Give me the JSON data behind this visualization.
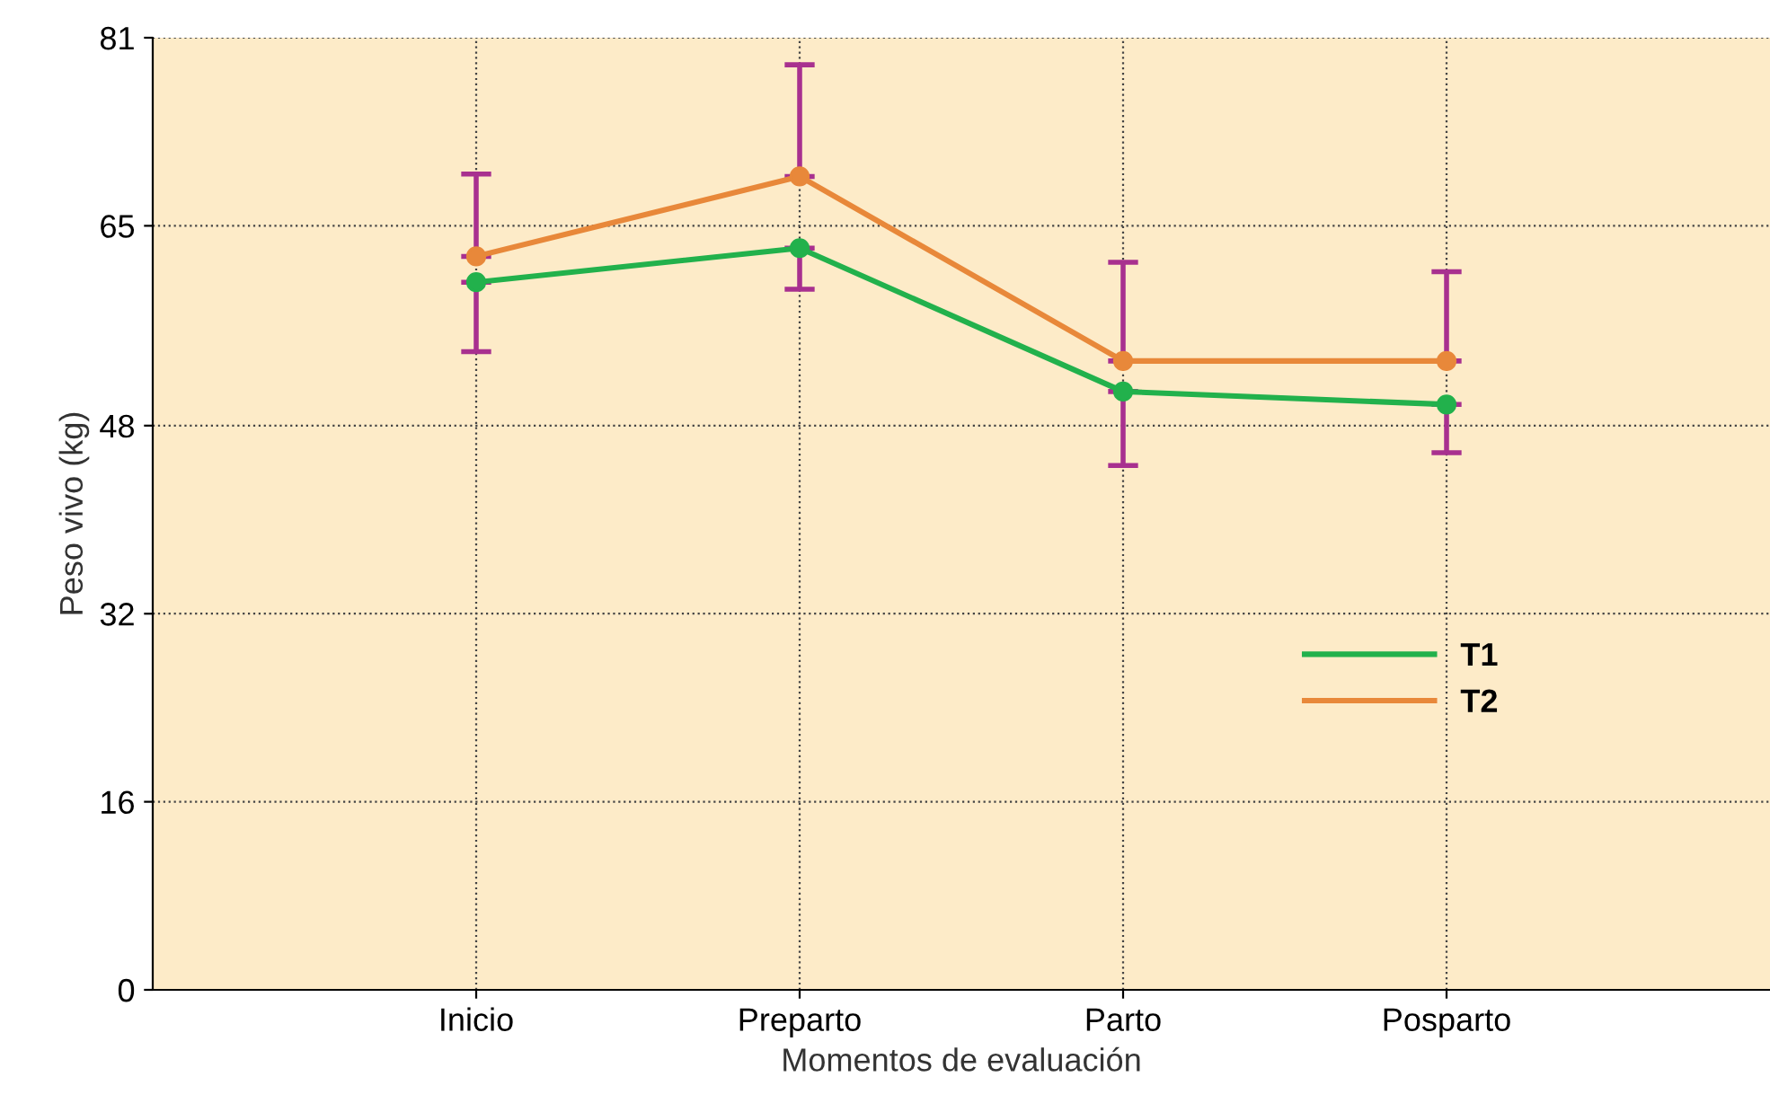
{
  "chart_data": {
    "type": "line",
    "xlabel": "Momentos de evaluación",
    "ylabel": "Peso vivo (kg)",
    "categories": [
      "Inicio",
      "Preparto",
      "Parto",
      "Posparto"
    ],
    "series": [
      {
        "name": "T1",
        "color": "#22b14c",
        "values": [
          60.2,
          63.1,
          50.9,
          49.8
        ],
        "errors": [
          [
            54.3,
            60.2
          ],
          [
            59.6,
            63.1
          ],
          [
            44.6,
            50.9
          ],
          [
            45.7,
            49.8
          ]
        ]
      },
      {
        "name": "T2",
        "color": "#e8883a",
        "values": [
          62.4,
          69.2,
          53.5,
          53.5
        ],
        "errors": [
          [
            62.4,
            69.4
          ],
          [
            69.2,
            78.7
          ],
          [
            53.5,
            61.9
          ],
          [
            53.5,
            61.1
          ]
        ]
      }
    ],
    "ylim": [
      0,
      81
    ],
    "yticks": [
      0,
      16,
      32,
      48,
      65,
      81
    ],
    "grid": true,
    "legend": "center right",
    "marker": "circle",
    "line_style": "solid"
  }
}
